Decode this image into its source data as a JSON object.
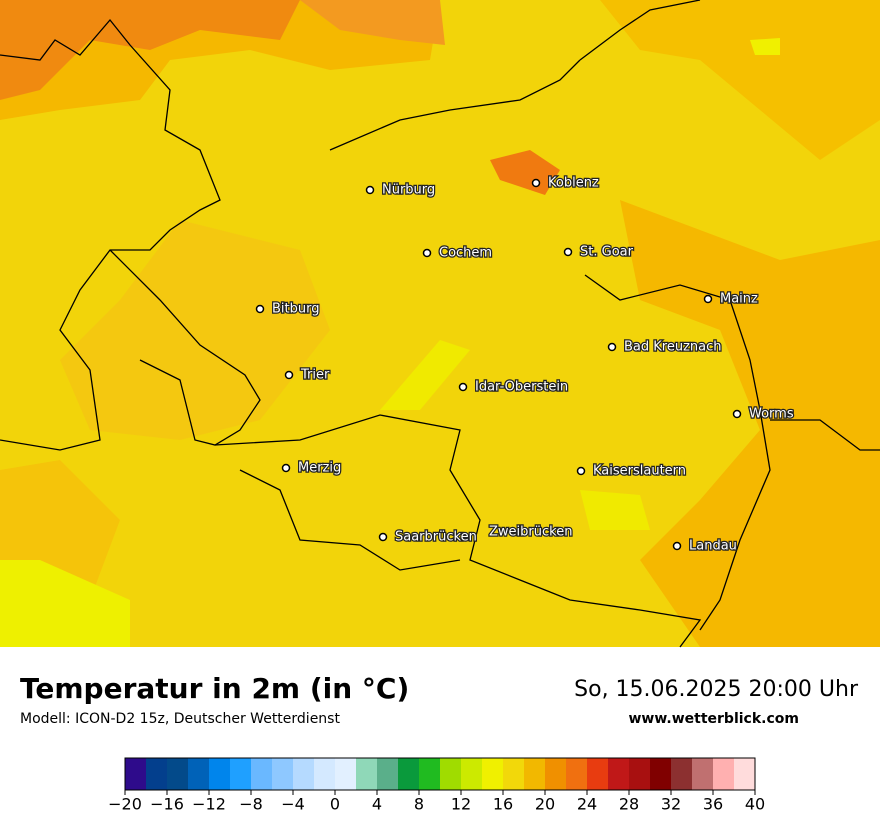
{
  "map": {
    "cities": [
      "Nürburg",
      "Koblenz",
      "Cochem",
      "St. Goar",
      "Mainz",
      "Bitburg",
      "Bad Kreuznach",
      "Trier",
      "Idar-Oberstein",
      "Worms",
      "Merzig",
      "Kaiserslautern",
      "Saarbrücken",
      "Zweibrücken",
      "Landau"
    ]
  },
  "footer": {
    "title": "Temperatur in 2m (in °C)",
    "model": "Modell: ICON-D2 15z, Deutscher Wetterdienst",
    "date": "So, 15.06.2025 20:00 Uhr",
    "website": "www.wetterblick.com"
  },
  "legend": {
    "bins": [
      -20,
      -18,
      -16,
      -14,
      -12,
      -10,
      -8,
      -6,
      -4,
      -2,
      0,
      2,
      4,
      6,
      8,
      10,
      12,
      14,
      16,
      18,
      20,
      22,
      24,
      26,
      28,
      30,
      32,
      34,
      36,
      38,
      40
    ],
    "colors": [
      "#2e0b8b",
      "#033f8d",
      "#034a8a",
      "#0062b8",
      "#0085ec",
      "#1fa0ff",
      "#6ab8ff",
      "#8ec8ff",
      "#b5daff",
      "#d4e9ff",
      "#e2f0ff",
      "#8fd8b8",
      "#5aaf8a",
      "#0a9a3c",
      "#20bb20",
      "#a0dc00",
      "#ccea00",
      "#f0f000",
      "#f2d80a",
      "#f2b800",
      "#f09000",
      "#f07010",
      "#e83c10",
      "#c01818",
      "#a81010",
      "#800000",
      "#8c3030",
      "#c07070",
      "#ffb0b0",
      "#ffdcdc"
    ],
    "ticks": [
      {
        "value": -20,
        "label": "−20"
      },
      {
        "value": -16,
        "label": "−16"
      },
      {
        "value": -12,
        "label": "−12"
      },
      {
        "value": -8,
        "label": "−8"
      },
      {
        "value": -4,
        "label": "−4"
      },
      0,
      4,
      8,
      12,
      16,
      20,
      24,
      28,
      32,
      36,
      40
    ]
  }
}
